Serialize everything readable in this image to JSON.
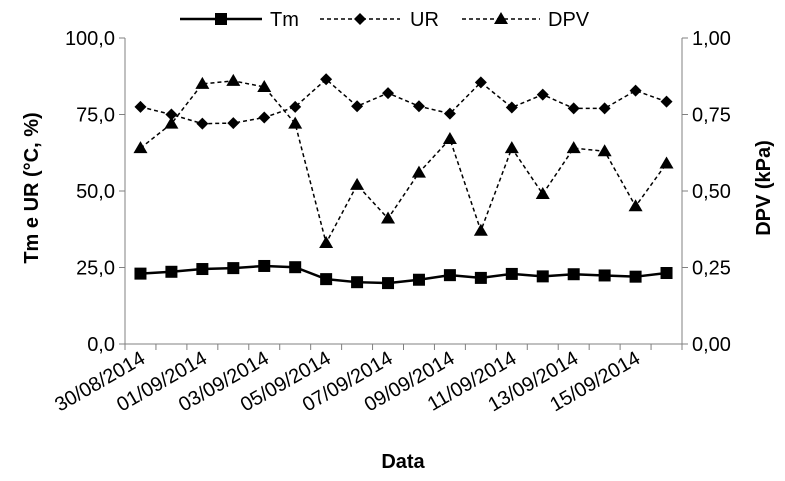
{
  "chart_data": {
    "type": "line",
    "xlabel": "Data",
    "ylabel_left": "Tm e UR (°C, %)",
    "ylabel_right": "DPV (kPa)",
    "ylim_left": [
      0,
      100
    ],
    "ylim_right": [
      0,
      1
    ],
    "left_ticks": [
      "0,0",
      "25,0",
      "50,0",
      "75,0",
      "100,0"
    ],
    "right_ticks": [
      "0,00",
      "0,25",
      "0,50",
      "0,75",
      "1,00"
    ],
    "x_tick_labels": [
      "30/08/2014",
      "01/09/2014",
      "03/09/2014",
      "05/09/2014",
      "07/09/2014",
      "09/09/2014",
      "11/09/2014",
      "13/09/2014",
      "15/09/2014"
    ],
    "dates": [
      "30/08/2014",
      "31/08/2014",
      "01/09/2014",
      "02/09/2014",
      "03/09/2014",
      "04/09/2014",
      "05/09/2014",
      "06/09/2014",
      "07/09/2014",
      "08/09/2014",
      "09/09/2014",
      "10/09/2014",
      "11/09/2014",
      "12/09/2014",
      "13/09/2014",
      "14/09/2014",
      "15/09/2014",
      "16/09/2014"
    ],
    "legend_position": "top",
    "series": [
      {
        "name": "Tm",
        "axis": "left",
        "style": "solid",
        "marker": "square",
        "values": [
          23.0,
          23.6,
          24.5,
          24.8,
          25.5,
          25.1,
          21.2,
          20.2,
          19.9,
          21.0,
          22.5,
          21.6,
          22.9,
          22.1,
          22.8,
          22.4,
          22.0,
          23.2
        ]
      },
      {
        "name": "UR",
        "axis": "left",
        "style": "dashed",
        "marker": "diamond",
        "values": [
          77.5,
          75.0,
          72.0,
          72.2,
          74.0,
          77.5,
          86.5,
          77.7,
          82.0,
          77.7,
          75.3,
          85.5,
          77.3,
          81.5,
          77.0,
          77.0,
          82.8,
          79.2
        ]
      },
      {
        "name": "DPV",
        "axis": "right",
        "style": "dashed",
        "marker": "triangle",
        "values": [
          0.64,
          0.72,
          0.85,
          0.86,
          0.84,
          0.72,
          0.33,
          0.52,
          0.41,
          0.56,
          0.67,
          0.37,
          0.64,
          0.49,
          0.64,
          0.63,
          0.45,
          0.59
        ]
      }
    ]
  }
}
